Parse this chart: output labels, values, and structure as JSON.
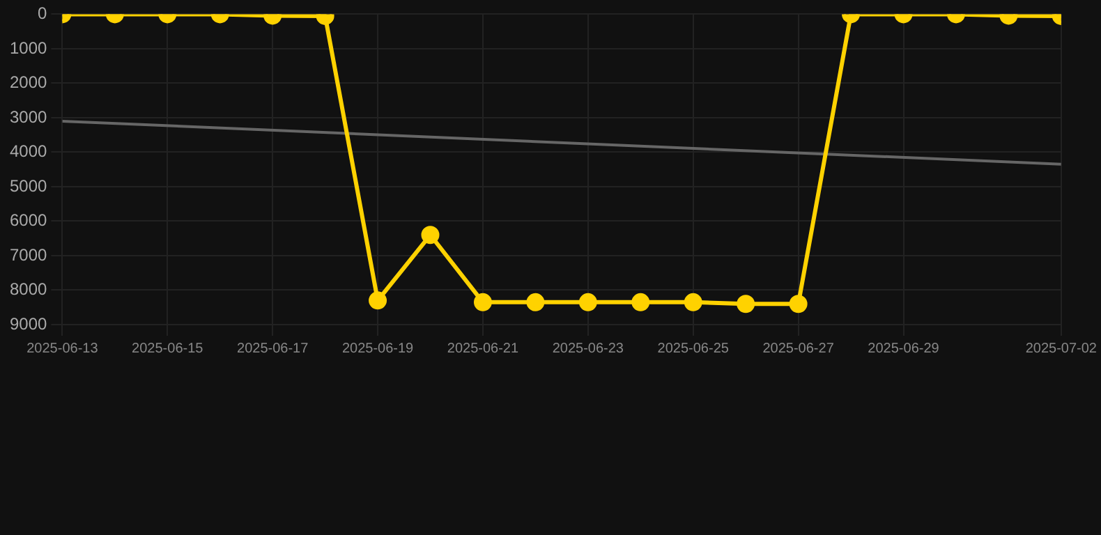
{
  "chart_data": {
    "type": "line",
    "x": [
      "2025-06-13",
      "2025-06-14",
      "2025-06-15",
      "2025-06-16",
      "2025-06-17",
      "2025-06-18",
      "2025-06-19",
      "2025-06-20",
      "2025-06-21",
      "2025-06-22",
      "2025-06-23",
      "2025-06-24",
      "2025-06-25",
      "2025-06-26",
      "2025-06-27",
      "2025-06-28",
      "2025-06-29",
      "2025-06-30",
      "2025-07-01",
      "2025-07-02"
    ],
    "series": [
      {
        "color": "#ffd200",
        "values": [
          0,
          0,
          0,
          0,
          40,
          50,
          8300,
          6400,
          8350,
          8350,
          8350,
          8350,
          8350,
          8400,
          8400,
          0,
          0,
          0,
          40,
          50
        ]
      },
      {
        "type": "line",
        "color": "#666666",
        "x": [
          "2025-06-13",
          "2025-07-02"
        ],
        "values": [
          3100,
          4350
        ],
        "marker": "none"
      }
    ],
    "xlim": [
      "2025-06-13",
      "2025-07-02"
    ],
    "xticks": [
      "2025-06-13",
      "2025-06-15",
      "2025-06-17",
      "2025-06-19",
      "2025-06-21",
      "2025-06-23",
      "2025-06-25",
      "2025-06-27",
      "2025-06-29",
      "2025-07-02"
    ],
    "ylim": [
      9000,
      0
    ],
    "yticks": [
      0,
      1000,
      2000,
      3000,
      4000,
      5000,
      6000,
      7000,
      8000,
      9000
    ],
    "grid": true,
    "marker": "circle",
    "line_style": "solid"
  }
}
